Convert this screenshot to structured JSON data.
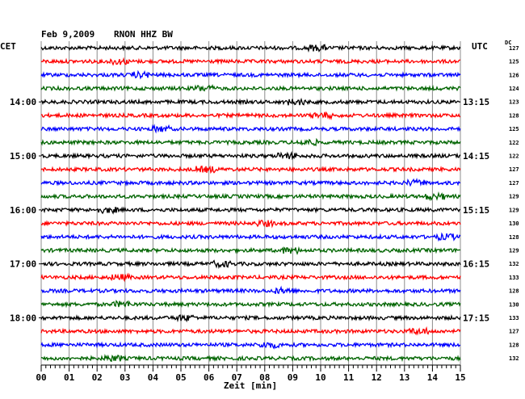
{
  "header": {
    "date": "Feb 9,2009",
    "station": "RNON HHZ BW",
    "left_tz": "CET",
    "right_tz": "UTC",
    "dc_label": "DC"
  },
  "chart_data": {
    "type": "line",
    "title": "Feb 9,2009   RNON HHZ BW",
    "xlabel": "Zeit [min]",
    "xlim": [
      0,
      15
    ],
    "x_ticks": [
      "00",
      "01",
      "02",
      "03",
      "04",
      "05",
      "06",
      "07",
      "08",
      "09",
      "10",
      "11",
      "12",
      "13",
      "14",
      "15"
    ],
    "left_hour_labels": [
      "14:00",
      "15:00",
      "16:00",
      "17:00",
      "18:00"
    ],
    "right_hour_labels": [
      "13:15",
      "14:15",
      "15:15",
      "16:15",
      "17:15"
    ],
    "trace_colors": [
      "#000000",
      "#ff0000",
      "#0000ff",
      "#006400"
    ],
    "dc_values": [
      "127",
      "125",
      "126",
      "124",
      "123",
      "128",
      "125",
      "122",
      "122",
      "127",
      "127",
      "129",
      "129",
      "130",
      "128",
      "129",
      "132",
      "133",
      "128",
      "130",
      "133",
      "127",
      "128",
      "132"
    ],
    "grid": true
  }
}
